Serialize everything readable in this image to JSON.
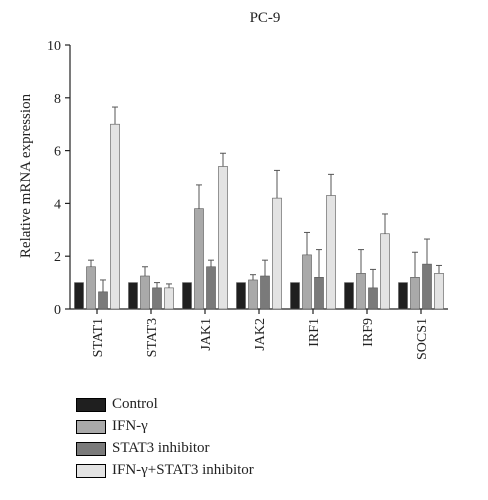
{
  "chart_data": {
    "type": "bar",
    "title": "PC-9",
    "xlabel": "",
    "ylabel": "Relative mRNA expression",
    "ylim": [
      0,
      10
    ],
    "yticks": [
      "0",
      "2",
      "4",
      "6",
      "8",
      "10"
    ],
    "categories": [
      "STAT1",
      "STAT3",
      "JAK1",
      "JAK2",
      "IRF1",
      "IRF9",
      "SOCS1"
    ],
    "series": [
      {
        "name": "Control",
        "color": "#1f1f1f",
        "values": [
          1.0,
          1.0,
          1.0,
          1.0,
          1.0,
          1.0,
          1.0
        ],
        "errors": [
          0.0,
          0.0,
          0.0,
          0.0,
          0.0,
          0.0,
          0.0
        ]
      },
      {
        "name": "IFN-γ",
        "color": "#a9a9a9",
        "values": [
          1.6,
          1.25,
          3.8,
          1.1,
          2.05,
          1.35,
          1.2
        ],
        "errors": [
          0.25,
          0.35,
          0.9,
          0.2,
          0.85,
          0.9,
          0.95
        ]
      },
      {
        "name": "STAT3 inhibitor",
        "color": "#7a7a7a",
        "values": [
          0.65,
          0.8,
          1.6,
          1.25,
          1.2,
          0.8,
          1.7
        ],
        "errors": [
          0.45,
          0.2,
          0.25,
          0.6,
          1.05,
          0.7,
          0.95
        ]
      },
      {
        "name": "IFN-γ+STAT3 inhibitor",
        "color": "#e3e3e3",
        "values": [
          7.0,
          0.8,
          5.4,
          4.2,
          4.3,
          2.85,
          1.35
        ],
        "errors": [
          0.65,
          0.15,
          0.5,
          1.05,
          0.8,
          0.75,
          0.3
        ]
      }
    ],
    "legend_position": "bottom-left",
    "grid": false
  }
}
